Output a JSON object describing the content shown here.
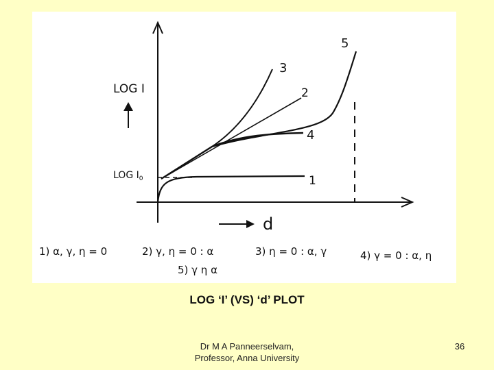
{
  "slide": {
    "caption": "LOG ‘I’ (VS) ‘d’ PLOT",
    "author_line1": "Dr M A Panneerselvam,",
    "author_line2": "Professor, Anna University",
    "page_number": "36"
  },
  "diagram": {
    "y_axis_label": "LOG I",
    "y_axis_subscript_label": "LOG I",
    "y_axis_subscript": "0",
    "x_axis_label": "d",
    "curve_labels": [
      "1",
      "2",
      "3",
      "4",
      "5"
    ],
    "legend": [
      "1) α, γ, η = 0",
      "2) γ, η = 0 : α",
      "3) η = 0 : α, γ",
      "4) γ = 0 : α, η",
      "5) γ η α"
    ]
  }
}
